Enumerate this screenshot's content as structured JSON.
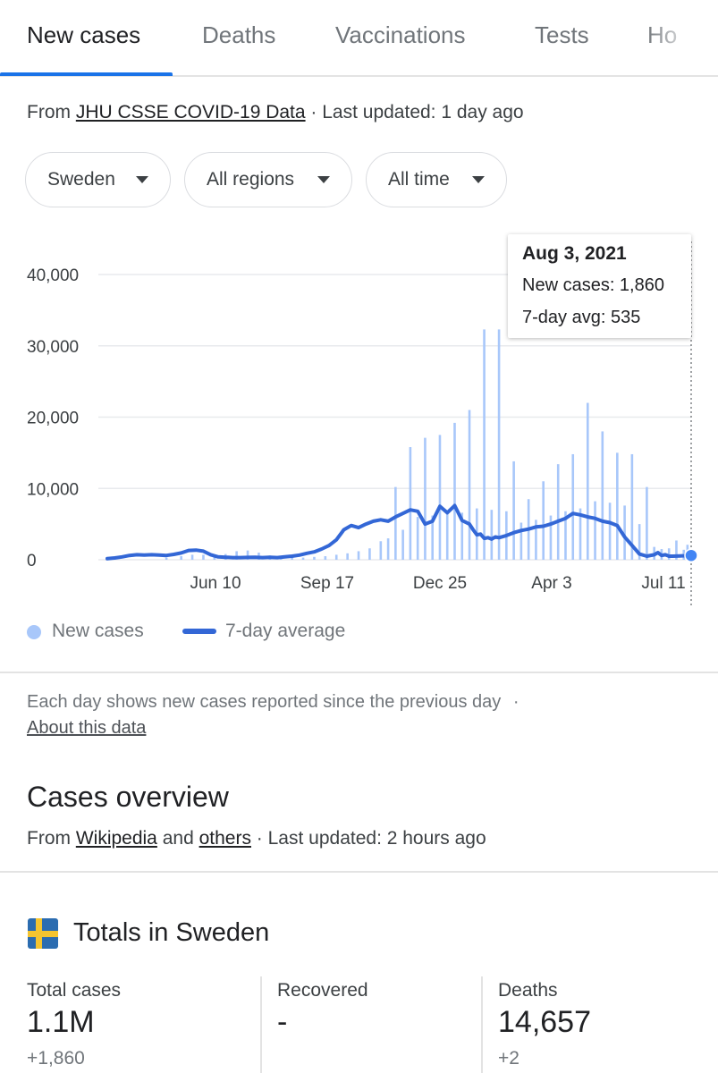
{
  "tabs": [
    {
      "label": "New cases",
      "active": true
    },
    {
      "label": "Deaths"
    },
    {
      "label": "Vaccinations"
    },
    {
      "label": "Tests"
    },
    {
      "label": "Ho"
    }
  ],
  "source": {
    "prefix": "From ",
    "link": "JHU CSSE COVID-19 Data",
    "suffix": " · Last updated: 1 day ago"
  },
  "filters": {
    "location": "Sweden",
    "region": "All regions",
    "period": "All time"
  },
  "chart_data": {
    "type": "bar",
    "title": "New cases",
    "y_ticks": [
      "40,000",
      "30,000",
      "20,000",
      "10,000",
      "0"
    ],
    "ylim": [
      0,
      40000
    ],
    "x_ticks": [
      "Jun 10",
      "Sep 17",
      "Dec 25",
      "Apr 3",
      "Jul 11"
    ],
    "legend": [
      "New cases",
      "7-day average"
    ],
    "series": [
      {
        "name": "New cases",
        "kind": "bars",
        "x": [
          32,
          40,
          46,
          52,
          58,
          64,
          70,
          76,
          82,
          88,
          94,
          100,
          106,
          112,
          118,
          124,
          130,
          136,
          142,
          148,
          152,
          156,
          160,
          164,
          168,
          172,
          176,
          180,
          184,
          188,
          192,
          196,
          200,
          204,
          208,
          212,
          216,
          220,
          224,
          228,
          232,
          236,
          240,
          244,
          248,
          252,
          256,
          260,
          264,
          268,
          272,
          276,
          280,
          284,
          288,
          292,
          296,
          300,
          304,
          308,
          312,
          314
        ],
        "values": [
          300,
          500,
          700,
          700,
          600,
          800,
          1200,
          1300,
          1000,
          600,
          400,
          300,
          300,
          400,
          500,
          700,
          900,
          1200,
          1600,
          2600,
          3000,
          10200,
          4200,
          15800,
          6000,
          17100,
          6200,
          17500,
          6400,
          19200,
          6600,
          21000,
          7200,
          32300,
          7000,
          32300,
          6800,
          13800,
          5200,
          8500,
          5600,
          11000,
          6200,
          13400,
          6800,
          14800,
          7200,
          22000,
          8200,
          18000,
          8000,
          15000,
          7600,
          14800,
          5000,
          10200,
          1800,
          1500,
          1600,
          2700,
          1400,
          2100
        ]
      },
      {
        "name": "7-day average",
        "kind": "line",
        "x": [
          0,
          4,
          8,
          12,
          16,
          20,
          24,
          28,
          32,
          36,
          40,
          44,
          48,
          52,
          56,
          60,
          64,
          68,
          72,
          76,
          80,
          84,
          88,
          92,
          96,
          100,
          104,
          108,
          112,
          116,
          120,
          124,
          128,
          132,
          136,
          140,
          144,
          148,
          152,
          156,
          160,
          164,
          168,
          172,
          176,
          180,
          184,
          188,
          192,
          196,
          198,
          200,
          202,
          204,
          206,
          208,
          210,
          212,
          216,
          220,
          224,
          228,
          232,
          236,
          240,
          244,
          248,
          252,
          256,
          260,
          264,
          268,
          272,
          276,
          280,
          284,
          288,
          292,
          296,
          298,
          300,
          302,
          304,
          306,
          310,
          314,
          316
        ],
        "values": [
          150,
          250,
          400,
          600,
          700,
          650,
          700,
          650,
          600,
          750,
          950,
          1300,
          1350,
          1200,
          700,
          400,
          350,
          300,
          300,
          320,
          350,
          300,
          350,
          300,
          400,
          500,
          650,
          900,
          1100,
          1500,
          2000,
          2800,
          4200,
          4800,
          4500,
          5000,
          5400,
          5600,
          5400,
          6000,
          6500,
          7000,
          6800,
          5000,
          5400,
          7500,
          6600,
          7600,
          5500,
          5000,
          4200,
          3500,
          3600,
          3000,
          3100,
          2900,
          3200,
          3100,
          3400,
          3800,
          4100,
          4300,
          4600,
          4700,
          5000,
          5400,
          5800,
          6500,
          6300,
          6000,
          5800,
          5400,
          5200,
          4800,
          3200,
          2000,
          800,
          500,
          700,
          1000,
          600,
          700,
          500,
          500,
          535,
          550,
          600
        ]
      }
    ],
    "tooltip": {
      "date": "Aug 3, 2021",
      "new_cases_label": "New cases: 1,860",
      "avg_label": "7-day avg: 535"
    }
  },
  "footnote": {
    "text": "Each day shows new cases reported since the previous day",
    "separator": "·",
    "link": "About this data"
  },
  "overview": {
    "title": "Cases overview",
    "src_prefix": "From ",
    "src_link1": "Wikipedia",
    "src_mid": " and ",
    "src_link2": "others",
    "src_suffix": " · Last updated: 2 hours ago"
  },
  "totals": {
    "title": "Totals in Sweden",
    "flag_icon": "sweden-flag-icon",
    "stats": [
      {
        "label": "Total cases",
        "value": "1.1M",
        "delta": "+1,860"
      },
      {
        "label": "Recovered",
        "value": "-",
        "delta": ""
      },
      {
        "label": "Deaths",
        "value": "14,657",
        "delta": "+2"
      }
    ]
  },
  "colors": {
    "accent": "#1a73e8",
    "bar": "#a8c7fa",
    "line": "#3367d6"
  }
}
